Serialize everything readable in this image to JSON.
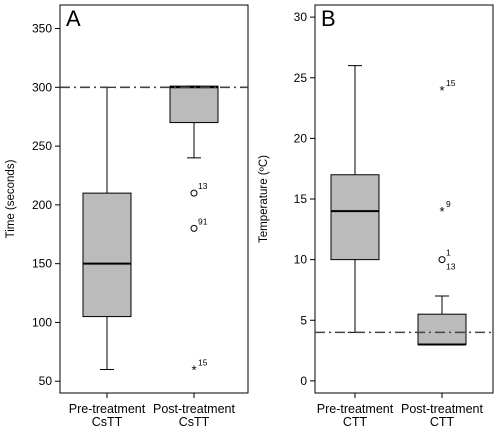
{
  "chart_data": [
    {
      "type": "box",
      "panel_label": "A",
      "ylabel": "Time (seconds)",
      "ylim": [
        40,
        370
      ],
      "yticks": [
        50,
        100,
        150,
        200,
        250,
        300,
        350
      ],
      "reference_line": 300,
      "categories": [
        {
          "line1": "Pre-treatment",
          "line2": "CsTT"
        },
        {
          "line1": "Post-treatment",
          "line2": "CsTT"
        }
      ],
      "boxes": [
        {
          "whisker_low": 60,
          "q1": 105,
          "median": 150,
          "q3": 210,
          "whisker_high": 300,
          "outliers": []
        },
        {
          "whisker_low": 240,
          "q1": 270,
          "median": 300,
          "q3": 301,
          "whisker_high": 301,
          "outliers": [
            {
              "value": 210,
              "marker": "circle",
              "label": "13"
            },
            {
              "value": 180,
              "marker": "circle",
              "label": "91"
            },
            {
              "value": 60,
              "marker": "star",
              "label": "15"
            }
          ]
        }
      ],
      "box_color": "#bbbbbb"
    },
    {
      "type": "box",
      "panel_label": "B",
      "ylabel": "Temperature (ºC)",
      "ylim": [
        -1,
        31
      ],
      "yticks": [
        0,
        5,
        10,
        15,
        20,
        25,
        30
      ],
      "reference_line": 4,
      "categories": [
        {
          "line1": "Pre-treatment",
          "line2": "CTT"
        },
        {
          "line1": "Post-treatment",
          "line2": "CTT"
        }
      ],
      "boxes": [
        {
          "whisker_low": 4,
          "q1": 10,
          "median": 14,
          "q3": 17,
          "whisker_high": 26,
          "outliers": []
        },
        {
          "whisker_low": 3,
          "q1": 3,
          "median": 3,
          "q3": 5.5,
          "whisker_high": 7,
          "outliers": [
            {
              "value": 24,
              "marker": "star",
              "label": "15"
            },
            {
              "value": 14,
              "marker": "star",
              "label": "9"
            },
            {
              "value": 10,
              "marker": "circle",
              "label": "1"
            },
            {
              "value": 10,
              "marker": "none",
              "label": "13"
            }
          ]
        }
      ],
      "box_color": "#bbbbbb"
    }
  ]
}
